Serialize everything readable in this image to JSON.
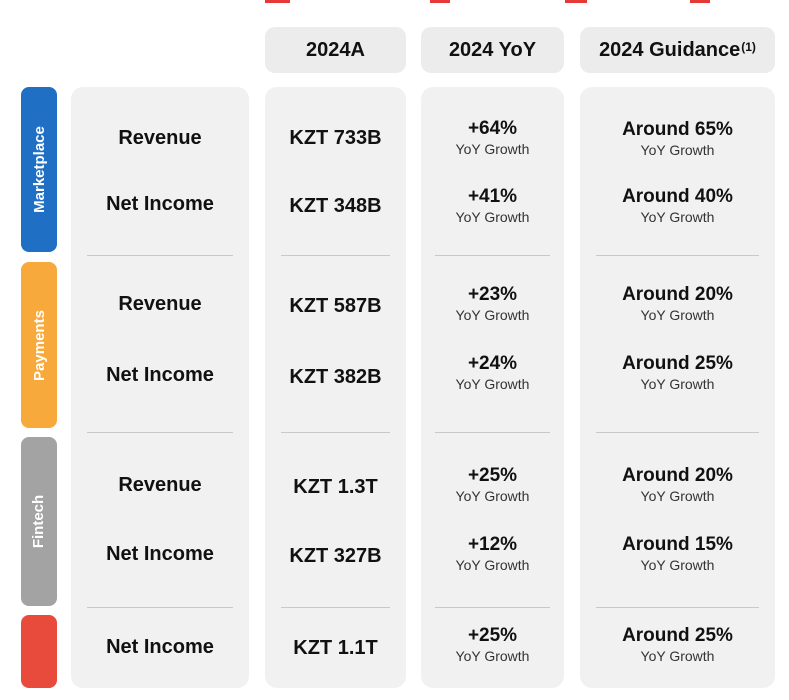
{
  "colors": {
    "marketplace": "#1f6fc5",
    "payments": "#f7a93b",
    "fintech": "#a3a3a3",
    "total": "#e84a3c",
    "panel": "#f1f1f1",
    "header": "#ececec"
  },
  "headers": {
    "actual": "2024A",
    "yoy": "2024 YoY",
    "guidance": "2024 Guidance",
    "guidance_footnote": "(1)"
  },
  "segments": [
    {
      "label": "Marketplace",
      "rows": [
        {
          "metric": "Revenue",
          "actual": "KZT 733B",
          "yoy": "+64%",
          "yoy_sub": "YoY Growth",
          "guidance": "Around 65%",
          "guidance_sub": "YoY Growth"
        },
        {
          "metric": "Net Income",
          "actual": "KZT 348B",
          "yoy": "+41%",
          "yoy_sub": "YoY Growth",
          "guidance": "Around 40%",
          "guidance_sub": "YoY Growth"
        }
      ]
    },
    {
      "label": "Payments",
      "rows": [
        {
          "metric": "Revenue",
          "actual": "KZT 587B",
          "yoy": "+23%",
          "yoy_sub": "YoY Growth",
          "guidance": "Around 20%",
          "guidance_sub": "YoY Growth"
        },
        {
          "metric": "Net Income",
          "actual": "KZT 382B",
          "yoy": "+24%",
          "yoy_sub": "YoY Growth",
          "guidance": "Around 25%",
          "guidance_sub": "YoY Growth"
        }
      ]
    },
    {
      "label": "Fintech",
      "rows": [
        {
          "metric": "Revenue",
          "actual": "KZT 1.3T",
          "yoy": "+25%",
          "yoy_sub": "YoY Growth",
          "guidance": "Around 20%",
          "guidance_sub": "YoY Growth"
        },
        {
          "metric": "Net Income",
          "actual": "KZT 327B",
          "yoy": "+12%",
          "yoy_sub": "YoY Growth",
          "guidance": "Around 15%",
          "guidance_sub": "YoY Growth"
        }
      ]
    },
    {
      "label": "",
      "rows": [
        {
          "metric": "Net Income",
          "actual": "KZT 1.1T",
          "yoy": "+25%",
          "yoy_sub": "YoY Growth",
          "guidance": "Around 25%",
          "guidance_sub": "YoY Growth"
        }
      ]
    }
  ]
}
